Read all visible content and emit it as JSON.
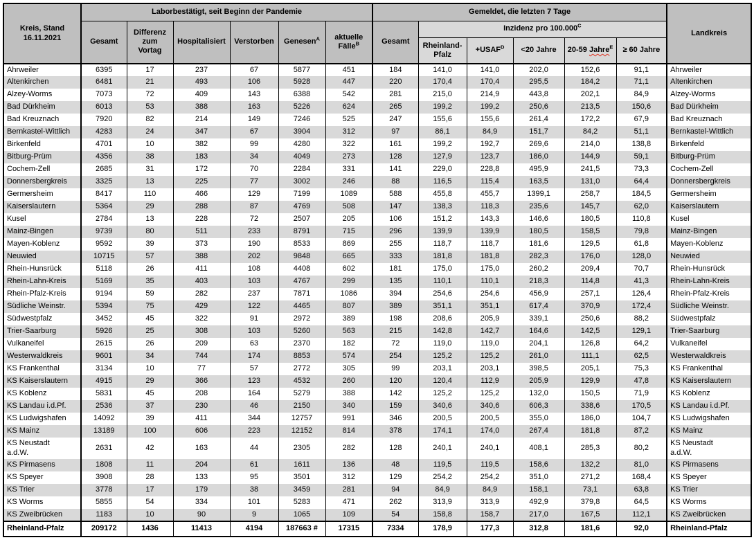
{
  "title_cell": "Kreis, Stand\n16.11.2021",
  "groups": {
    "lab": "Laborbestätigt, seit Beginn der Pandemie",
    "reported7": "Gemeldet, die letzten 7 Tage",
    "incidence": {
      "label": "Inzidenz pro 100.000",
      "sup": "C"
    }
  },
  "columns": {
    "lab": [
      {
        "label": "Gesamt"
      },
      {
        "label": "Differenz\nzum\nVortag"
      },
      {
        "label": "Hospitalisiert"
      },
      {
        "label": "Verstorben"
      },
      {
        "label": "Genesen",
        "sup": "A"
      },
      {
        "label": "aktuelle\nFälle",
        "sup": "B"
      }
    ],
    "reported_total": {
      "label": "Gesamt"
    },
    "incidence": [
      {
        "label": "Rheinland-Pfalz"
      },
      {
        "label": "+USAF",
        "sup": "D"
      },
      {
        "label": "<20 Jahre"
      },
      {
        "label": "20-59 Jahre",
        "sup": "E",
        "wavy_word": "Jahre"
      },
      {
        "label": "≥ 60 Jahre"
      }
    ],
    "landkreis": "Landkreis"
  },
  "rows": [
    {
      "name": "Ahrweiler",
      "values": [
        "6395",
        "17",
        "237",
        "67",
        "5877",
        "451",
        "184",
        "141,0",
        "141,0",
        "202,0",
        "152,6",
        "91,1"
      ]
    },
    {
      "name": "Altenkirchen",
      "values": [
        "6481",
        "21",
        "493",
        "106",
        "5928",
        "447",
        "220",
        "170,4",
        "170,4",
        "295,5",
        "184,2",
        "71,1"
      ]
    },
    {
      "name": "Alzey-Worms",
      "values": [
        "7073",
        "72",
        "409",
        "143",
        "6388",
        "542",
        "281",
        "215,0",
        "214,9",
        "443,8",
        "202,1",
        "84,9"
      ]
    },
    {
      "name": "Bad Dürkheim",
      "values": [
        "6013",
        "53",
        "388",
        "163",
        "5226",
        "624",
        "265",
        "199,2",
        "199,2",
        "250,6",
        "213,5",
        "150,6"
      ]
    },
    {
      "name": "Bad Kreuznach",
      "values": [
        "7920",
        "82",
        "214",
        "149",
        "7246",
        "525",
        "247",
        "155,6",
        "155,6",
        "261,4",
        "172,2",
        "67,9"
      ]
    },
    {
      "name": "Bernkastel-Wittlich",
      "values": [
        "4283",
        "24",
        "347",
        "67",
        "3904",
        "312",
        "97",
        "86,1",
        "84,9",
        "151,7",
        "84,2",
        "51,1"
      ]
    },
    {
      "name": "Birkenfeld",
      "values": [
        "4701",
        "10",
        "382",
        "99",
        "4280",
        "322",
        "161",
        "199,2",
        "192,7",
        "269,6",
        "214,0",
        "138,8"
      ]
    },
    {
      "name": "Bitburg-Prüm",
      "values": [
        "4356",
        "38",
        "183",
        "34",
        "4049",
        "273",
        "128",
        "127,9",
        "123,7",
        "186,0",
        "144,9",
        "59,1"
      ]
    },
    {
      "name": "Cochem-Zell",
      "values": [
        "2685",
        "31",
        "172",
        "70",
        "2284",
        "331",
        "141",
        "229,0",
        "228,8",
        "495,9",
        "241,5",
        "73,3"
      ]
    },
    {
      "name": "Donnersbergkreis",
      "values": [
        "3325",
        "13",
        "225",
        "77",
        "3002",
        "246",
        "88",
        "116,5",
        "115,4",
        "163,5",
        "131,0",
        "64,4"
      ]
    },
    {
      "name": "Germersheim",
      "values": [
        "8417",
        "110",
        "466",
        "129",
        "7199",
        "1089",
        "588",
        "455,8",
        "455,7",
        "1399,1",
        "258,7",
        "184,5"
      ]
    },
    {
      "name": "Kaiserslautern",
      "values": [
        "5364",
        "29",
        "288",
        "87",
        "4769",
        "508",
        "147",
        "138,3",
        "118,3",
        "235,6",
        "145,7",
        "62,0"
      ]
    },
    {
      "name": "Kusel",
      "values": [
        "2784",
        "13",
        "228",
        "72",
        "2507",
        "205",
        "106",
        "151,2",
        "143,3",
        "146,6",
        "180,5",
        "110,8"
      ]
    },
    {
      "name": "Mainz-Bingen",
      "values": [
        "9739",
        "80",
        "511",
        "233",
        "8791",
        "715",
        "296",
        "139,9",
        "139,9",
        "180,5",
        "158,5",
        "79,8"
      ]
    },
    {
      "name": "Mayen-Koblenz",
      "values": [
        "9592",
        "39",
        "373",
        "190",
        "8533",
        "869",
        "255",
        "118,7",
        "118,7",
        "181,6",
        "129,5",
        "61,8"
      ]
    },
    {
      "name": "Neuwied",
      "values": [
        "10715",
        "57",
        "388",
        "202",
        "9848",
        "665",
        "333",
        "181,8",
        "181,8",
        "282,3",
        "176,0",
        "128,0"
      ]
    },
    {
      "name": "Rhein-Hunsrück",
      "values": [
        "5118",
        "26",
        "411",
        "108",
        "4408",
        "602",
        "181",
        "175,0",
        "175,0",
        "260,2",
        "209,4",
        "70,7"
      ]
    },
    {
      "name": "Rhein-Lahn-Kreis",
      "values": [
        "5169",
        "35",
        "403",
        "103",
        "4767",
        "299",
        "135",
        "110,1",
        "110,1",
        "218,3",
        "114,8",
        "41,3"
      ]
    },
    {
      "name": "Rhein-Pfalz-Kreis",
      "values": [
        "9194",
        "59",
        "282",
        "237",
        "7871",
        "1086",
        "394",
        "254,6",
        "254,6",
        "456,9",
        "257,1",
        "126,4"
      ]
    },
    {
      "name": "Südliche Weinstr.",
      "values": [
        "5394",
        "75",
        "429",
        "122",
        "4465",
        "807",
        "389",
        "351,1",
        "351,1",
        "617,4",
        "370,9",
        "172,4"
      ]
    },
    {
      "name": "Südwestpfalz",
      "values": [
        "3452",
        "45",
        "322",
        "91",
        "2972",
        "389",
        "198",
        "208,6",
        "205,9",
        "339,1",
        "250,6",
        "88,2"
      ]
    },
    {
      "name": "Trier-Saarburg",
      "values": [
        "5926",
        "25",
        "308",
        "103",
        "5260",
        "563",
        "215",
        "142,8",
        "142,7",
        "164,6",
        "142,5",
        "129,1"
      ]
    },
    {
      "name": "Vulkaneifel",
      "values": [
        "2615",
        "26",
        "209",
        "63",
        "2370",
        "182",
        "72",
        "119,0",
        "119,0",
        "204,1",
        "126,8",
        "64,2"
      ]
    },
    {
      "name": "Westerwaldkreis",
      "values": [
        "9601",
        "34",
        "744",
        "174",
        "8853",
        "574",
        "254",
        "125,2",
        "125,2",
        "261,0",
        "111,1",
        "62,5"
      ]
    },
    {
      "name": "KS Frankenthal",
      "values": [
        "3134",
        "10",
        "77",
        "57",
        "2772",
        "305",
        "99",
        "203,1",
        "203,1",
        "398,5",
        "205,1",
        "75,3"
      ]
    },
    {
      "name": "KS Kaiserslautern",
      "values": [
        "4915",
        "29",
        "366",
        "123",
        "4532",
        "260",
        "120",
        "120,4",
        "112,9",
        "205,9",
        "129,9",
        "47,8"
      ]
    },
    {
      "name": "KS Koblenz",
      "values": [
        "5831",
        "45",
        "208",
        "164",
        "5279",
        "388",
        "142",
        "125,2",
        "125,2",
        "132,0",
        "150,5",
        "71,9"
      ]
    },
    {
      "name": "KS Landau i.d.Pf.",
      "values": [
        "2536",
        "37",
        "230",
        "46",
        "2150",
        "340",
        "159",
        "340,6",
        "340,6",
        "606,3",
        "338,6",
        "170,5"
      ]
    },
    {
      "name": "KS Ludwigshafen",
      "values": [
        "14092",
        "39",
        "411",
        "344",
        "12757",
        "991",
        "346",
        "200,5",
        "200,5",
        "355,0",
        "186,0",
        "104,7"
      ]
    },
    {
      "name": "KS Mainz",
      "values": [
        "13189",
        "100",
        "606",
        "223",
        "12152",
        "814",
        "378",
        "174,1",
        "174,0",
        "267,4",
        "181,8",
        "87,2"
      ]
    },
    {
      "name": "KS Neustadt\na.d.W.",
      "tall": true,
      "values": [
        "2631",
        "42",
        "163",
        "44",
        "2305",
        "282",
        "128",
        "240,1",
        "240,1",
        "408,1",
        "285,3",
        "80,2"
      ]
    },
    {
      "name": "KS Pirmasens",
      "values": [
        "1808",
        "11",
        "204",
        "61",
        "1611",
        "136",
        "48",
        "119,5",
        "119,5",
        "158,6",
        "132,2",
        "81,0"
      ]
    },
    {
      "name": "KS Speyer",
      "values": [
        "3908",
        "28",
        "133",
        "95",
        "3501",
        "312",
        "129",
        "254,2",
        "254,2",
        "351,0",
        "271,2",
        "168,4"
      ]
    },
    {
      "name": "KS Trier",
      "values": [
        "3778",
        "17",
        "179",
        "38",
        "3459",
        "281",
        "94",
        "84,9",
        "84,9",
        "158,1",
        "73,1",
        "63,8"
      ]
    },
    {
      "name": "KS Worms",
      "values": [
        "5855",
        "54",
        "334",
        "101",
        "5283",
        "471",
        "262",
        "313,9",
        "313,9",
        "492,9",
        "379,8",
        "64,5"
      ]
    },
    {
      "name": "KS Zweibrücken",
      "values": [
        "1183",
        "10",
        "90",
        "9",
        "1065",
        "109",
        "54",
        "158,8",
        "158,7",
        "217,0",
        "167,5",
        "112,1"
      ]
    }
  ],
  "total": {
    "name": "Rheinland-Pfalz",
    "values": [
      "209172",
      "1436",
      "11413",
      "4194",
      "187663 #",
      "17315",
      "7334",
      "178,9",
      "177,3",
      "312,8",
      "181,6",
      "92,0"
    ]
  },
  "colors": {
    "header_bg": "#bfbfbf",
    "subheader_bg": "#d9d9d9",
    "row_stripe_bg": "#d9d9d9",
    "border": "#000000",
    "spellcheck_underline": "#e0301e"
  }
}
